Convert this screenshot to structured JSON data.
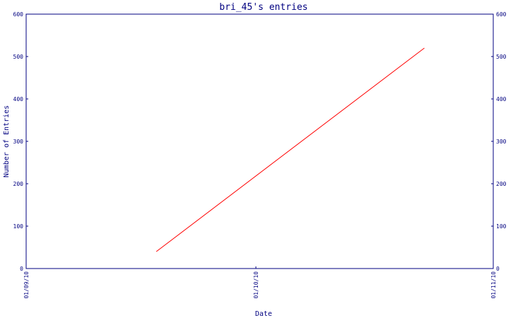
{
  "chart_data": {
    "type": "line",
    "title": "bri_45's entries",
    "xlabel": "Date",
    "ylabel": "Number of Entries",
    "x_ticks": [
      "01/09/10",
      "01/10/10",
      "01/11/10"
    ],
    "xlim": [
      "01/09/10",
      "01/11/10"
    ],
    "ylim": [
      0,
      600
    ],
    "y_ticks": [
      0,
      100,
      200,
      300,
      400,
      500,
      600
    ],
    "y_tick_labels": [
      "0",
      "100",
      "200",
      "300",
      "400",
      "500",
      "600"
    ],
    "series": [
      {
        "color": "#ff0000",
        "points": [
          {
            "x": "2010-09-18",
            "y": 40
          },
          {
            "x": "2010-10-23",
            "y": 520
          }
        ]
      }
    ],
    "grid": false,
    "axis_color": "#000080"
  }
}
